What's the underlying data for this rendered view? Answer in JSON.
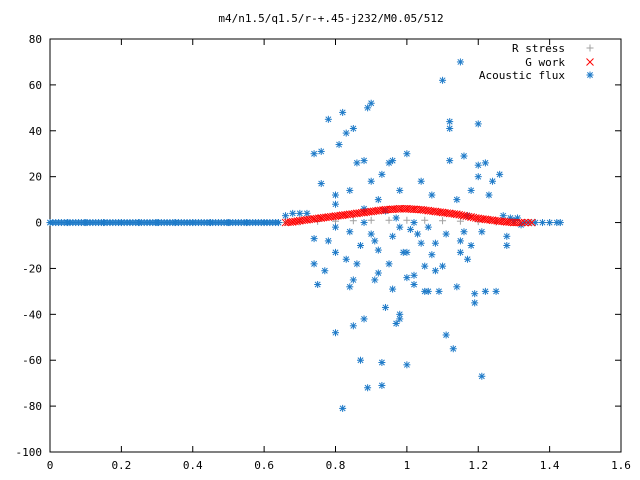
{
  "chart_data": {
    "type": "scatter",
    "title": "m4/n1.5/q1.5/r-+.45-j232/M0.05/512",
    "xlabel": "",
    "ylabel": "",
    "xlim": [
      0,
      1.6
    ],
    "ylim": [
      -100,
      80
    ],
    "x_ticks": [
      0,
      0.2,
      0.4,
      0.6,
      0.8,
      1,
      1.2,
      1.4,
      1.6
    ],
    "y_ticks": [
      -100,
      -80,
      -60,
      -40,
      -20,
      0,
      20,
      40,
      60,
      80
    ],
    "x_tick_labels": [
      "0",
      "0.2",
      "0.4",
      "0.6",
      "0.8",
      "1",
      "1.2",
      "1.4",
      "1.6"
    ],
    "y_tick_labels": [
      "-100",
      "-80",
      "-60",
      "-40",
      "-20",
      "0",
      "20",
      "40",
      "60",
      "80"
    ],
    "grid": false,
    "legend_position": "top-right",
    "series": [
      {
        "name": "R stress",
        "marker": "plus",
        "color": "#a0a0a0",
        "points": [
          [
            0.66,
            0
          ],
          [
            0.7,
            0.3
          ],
          [
            0.75,
            0.5
          ],
          [
            0.8,
            0.6
          ],
          [
            0.85,
            0.8
          ],
          [
            0.9,
            1
          ],
          [
            0.95,
            1
          ],
          [
            1.0,
            1
          ],
          [
            1.05,
            1
          ],
          [
            1.1,
            0.8
          ],
          [
            1.15,
            0.6
          ],
          [
            1.2,
            0.4
          ],
          [
            1.25,
            0.2
          ],
          [
            1.3,
            0
          ],
          [
            1.35,
            0
          ],
          [
            1.4,
            0
          ]
        ]
      },
      {
        "name": "G work",
        "marker": "cross",
        "color": "#ff0000",
        "points": [
          [
            0.66,
            0
          ],
          [
            0.68,
            0.3
          ],
          [
            0.7,
            0.8
          ],
          [
            0.72,
            1.2
          ],
          [
            0.74,
            1.6
          ],
          [
            0.76,
            2.0
          ],
          [
            0.78,
            2.4
          ],
          [
            0.8,
            2.8
          ],
          [
            0.82,
            3.2
          ],
          [
            0.84,
            3.6
          ],
          [
            0.86,
            4.0
          ],
          [
            0.88,
            4.4
          ],
          [
            0.9,
            4.8
          ],
          [
            0.92,
            5.2
          ],
          [
            0.94,
            5.6
          ],
          [
            0.96,
            5.8
          ],
          [
            0.98,
            6.0
          ],
          [
            1.0,
            6.0
          ],
          [
            1.02,
            5.8
          ],
          [
            1.04,
            5.6
          ],
          [
            1.06,
            5.2
          ],
          [
            1.08,
            4.8
          ],
          [
            1.1,
            4.4
          ],
          [
            1.12,
            4.0
          ],
          [
            1.14,
            3.6
          ],
          [
            1.16,
            3.0
          ],
          [
            1.18,
            2.4
          ],
          [
            1.2,
            1.8
          ],
          [
            1.22,
            1.4
          ],
          [
            1.24,
            1.0
          ],
          [
            1.26,
            0.6
          ],
          [
            1.28,
            0.3
          ],
          [
            1.3,
            0
          ],
          [
            1.32,
            0
          ],
          [
            1.35,
            0
          ]
        ]
      },
      {
        "name": "Acoustic flux",
        "marker": "star",
        "color": "#1e7ac8",
        "points": [
          [
            0.66,
            3
          ],
          [
            0.68,
            4
          ],
          [
            0.7,
            4
          ],
          [
            0.72,
            4
          ],
          [
            0.74,
            -7
          ],
          [
            0.74,
            -18
          ],
          [
            0.74,
            30
          ],
          [
            0.75,
            -27
          ],
          [
            0.76,
            31
          ],
          [
            0.76,
            17
          ],
          [
            0.77,
            -21
          ],
          [
            0.78,
            -8
          ],
          [
            0.78,
            45
          ],
          [
            0.8,
            -48
          ],
          [
            0.8,
            -2
          ],
          [
            0.8,
            8
          ],
          [
            0.8,
            12
          ],
          [
            0.8,
            -13
          ],
          [
            0.81,
            34
          ],
          [
            0.82,
            48
          ],
          [
            0.82,
            -81
          ],
          [
            0.83,
            39
          ],
          [
            0.83,
            -16
          ],
          [
            0.84,
            -4
          ],
          [
            0.84,
            14
          ],
          [
            0.84,
            -28
          ],
          [
            0.85,
            41
          ],
          [
            0.85,
            -25
          ],
          [
            0.85,
            -45
          ],
          [
            0.86,
            -18
          ],
          [
            0.86,
            26
          ],
          [
            0.87,
            -60
          ],
          [
            0.87,
            -10
          ],
          [
            0.88,
            27
          ],
          [
            0.88,
            -42
          ],
          [
            0.88,
            0
          ],
          [
            0.88,
            6
          ],
          [
            0.89,
            -72
          ],
          [
            0.89,
            50
          ],
          [
            0.9,
            52
          ],
          [
            0.9,
            -5
          ],
          [
            0.9,
            18
          ],
          [
            0.91,
            -25
          ],
          [
            0.91,
            -8
          ],
          [
            0.92,
            -22
          ],
          [
            0.92,
            10
          ],
          [
            0.92,
            -12
          ],
          [
            0.93,
            -71
          ],
          [
            0.93,
            -61
          ],
          [
            0.93,
            21
          ],
          [
            0.94,
            -37
          ],
          [
            0.94,
            5
          ],
          [
            0.95,
            26
          ],
          [
            0.95,
            -18
          ],
          [
            0.96,
            -29
          ],
          [
            0.96,
            -6
          ],
          [
            0.96,
            27
          ],
          [
            0.97,
            2
          ],
          [
            0.97,
            -44
          ],
          [
            0.98,
            -42
          ],
          [
            0.98,
            14
          ],
          [
            0.98,
            -2
          ],
          [
            0.98,
            -40
          ],
          [
            0.99,
            -13
          ],
          [
            1.0,
            -62
          ],
          [
            1.0,
            30
          ],
          [
            1.0,
            -24
          ],
          [
            1.0,
            -13
          ],
          [
            1.01,
            -3
          ],
          [
            1.02,
            0
          ],
          [
            1.02,
            -23
          ],
          [
            1.02,
            -27
          ],
          [
            1.03,
            -5
          ],
          [
            1.04,
            -9
          ],
          [
            1.04,
            18
          ],
          [
            1.05,
            -30
          ],
          [
            1.05,
            -19
          ],
          [
            1.06,
            -2
          ],
          [
            1.06,
            -30
          ],
          [
            1.07,
            12
          ],
          [
            1.07,
            -14
          ],
          [
            1.08,
            -21
          ],
          [
            1.08,
            -9
          ],
          [
            1.09,
            -30
          ],
          [
            1.1,
            -19
          ],
          [
            1.1,
            62
          ],
          [
            1.11,
            -5
          ],
          [
            1.11,
            -49
          ],
          [
            1.12,
            27
          ],
          [
            1.12,
            44
          ],
          [
            1.12,
            41
          ],
          [
            1.13,
            -55
          ],
          [
            1.14,
            10
          ],
          [
            1.14,
            -28
          ],
          [
            1.15,
            70
          ],
          [
            1.15,
            -8
          ],
          [
            1.15,
            -13
          ],
          [
            1.16,
            -4
          ],
          [
            1.16,
            29
          ],
          [
            1.17,
            -16
          ],
          [
            1.17,
            3
          ],
          [
            1.18,
            -10
          ],
          [
            1.18,
            14
          ],
          [
            1.19,
            -35
          ],
          [
            1.19,
            -31
          ],
          [
            1.2,
            43
          ],
          [
            1.2,
            25
          ],
          [
            1.2,
            20
          ],
          [
            1.21,
            -4
          ],
          [
            1.21,
            -67
          ],
          [
            1.22,
            26
          ],
          [
            1.22,
            -30
          ],
          [
            1.23,
            12
          ],
          [
            1.24,
            18
          ],
          [
            1.25,
            -30
          ],
          [
            1.26,
            21
          ],
          [
            1.27,
            3
          ],
          [
            1.28,
            -6
          ],
          [
            1.28,
            -10
          ],
          [
            1.29,
            2
          ],
          [
            1.3,
            1
          ],
          [
            1.31,
            2
          ],
          [
            1.32,
            -1
          ],
          [
            1.33,
            0
          ],
          [
            1.34,
            0
          ],
          [
            1.36,
            0
          ],
          [
            1.38,
            0
          ],
          [
            1.4,
            0
          ],
          [
            1.42,
            0
          ],
          [
            1.43,
            0
          ],
          [
            0.0,
            0
          ],
          [
            0.05,
            0
          ],
          [
            0.1,
            0
          ],
          [
            0.15,
            0
          ],
          [
            0.2,
            0
          ],
          [
            0.25,
            0
          ],
          [
            0.3,
            0
          ],
          [
            0.35,
            0
          ],
          [
            0.4,
            0
          ],
          [
            0.45,
            0
          ],
          [
            0.5,
            0
          ],
          [
            0.55,
            0
          ],
          [
            0.6,
            0
          ],
          [
            0.64,
            0
          ]
        ]
      }
    ]
  }
}
